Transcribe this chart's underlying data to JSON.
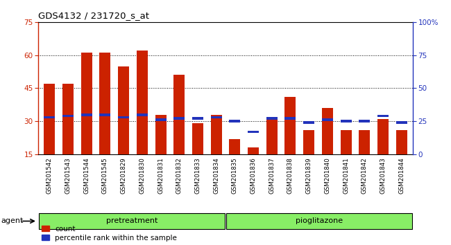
{
  "title": "GDS4132 / 231720_s_at",
  "samples": [
    "GSM201542",
    "GSM201543",
    "GSM201544",
    "GSM201545",
    "GSM201829",
    "GSM201830",
    "GSM201831",
    "GSM201832",
    "GSM201833",
    "GSM201834",
    "GSM201835",
    "GSM201836",
    "GSM201837",
    "GSM201838",
    "GSM201839",
    "GSM201840",
    "GSM201841",
    "GSM201842",
    "GSM201843",
    "GSM201844"
  ],
  "count_values": [
    47,
    47,
    61,
    61,
    55,
    62,
    33,
    51,
    29,
    33,
    22,
    18,
    32,
    41,
    26,
    36,
    26,
    26,
    31,
    26
  ],
  "percentile_values": [
    28,
    29,
    30,
    30,
    28,
    30,
    26,
    27,
    27,
    28,
    25,
    17,
    27,
    27,
    24,
    26,
    25,
    25,
    29,
    24
  ],
  "ylim_left": [
    15,
    75
  ],
  "ylim_right": [
    0,
    100
  ],
  "yticks_left": [
    15,
    30,
    45,
    60,
    75
  ],
  "yticks_right": [
    0,
    25,
    50,
    75,
    100
  ],
  "ytick_right_labels": [
    "0",
    "25",
    "50",
    "75",
    "100%"
  ],
  "bar_color_count": "#cc2200",
  "bar_color_percentile": "#2233bb",
  "bar_width": 0.6,
  "plot_bg_color": "#ffffff",
  "xtick_bg_color": "#cccccc",
  "legend_count": "count",
  "legend_percentile": "percentile rank within the sample",
  "group_label_pretreatment": "pretreatment",
  "group_label_pioglitazone": "pioglitazone",
  "agent_label": "agent",
  "group_bg_color": "#88ee66",
  "n_pretreatment": 10,
  "n_pioglitazone": 10
}
